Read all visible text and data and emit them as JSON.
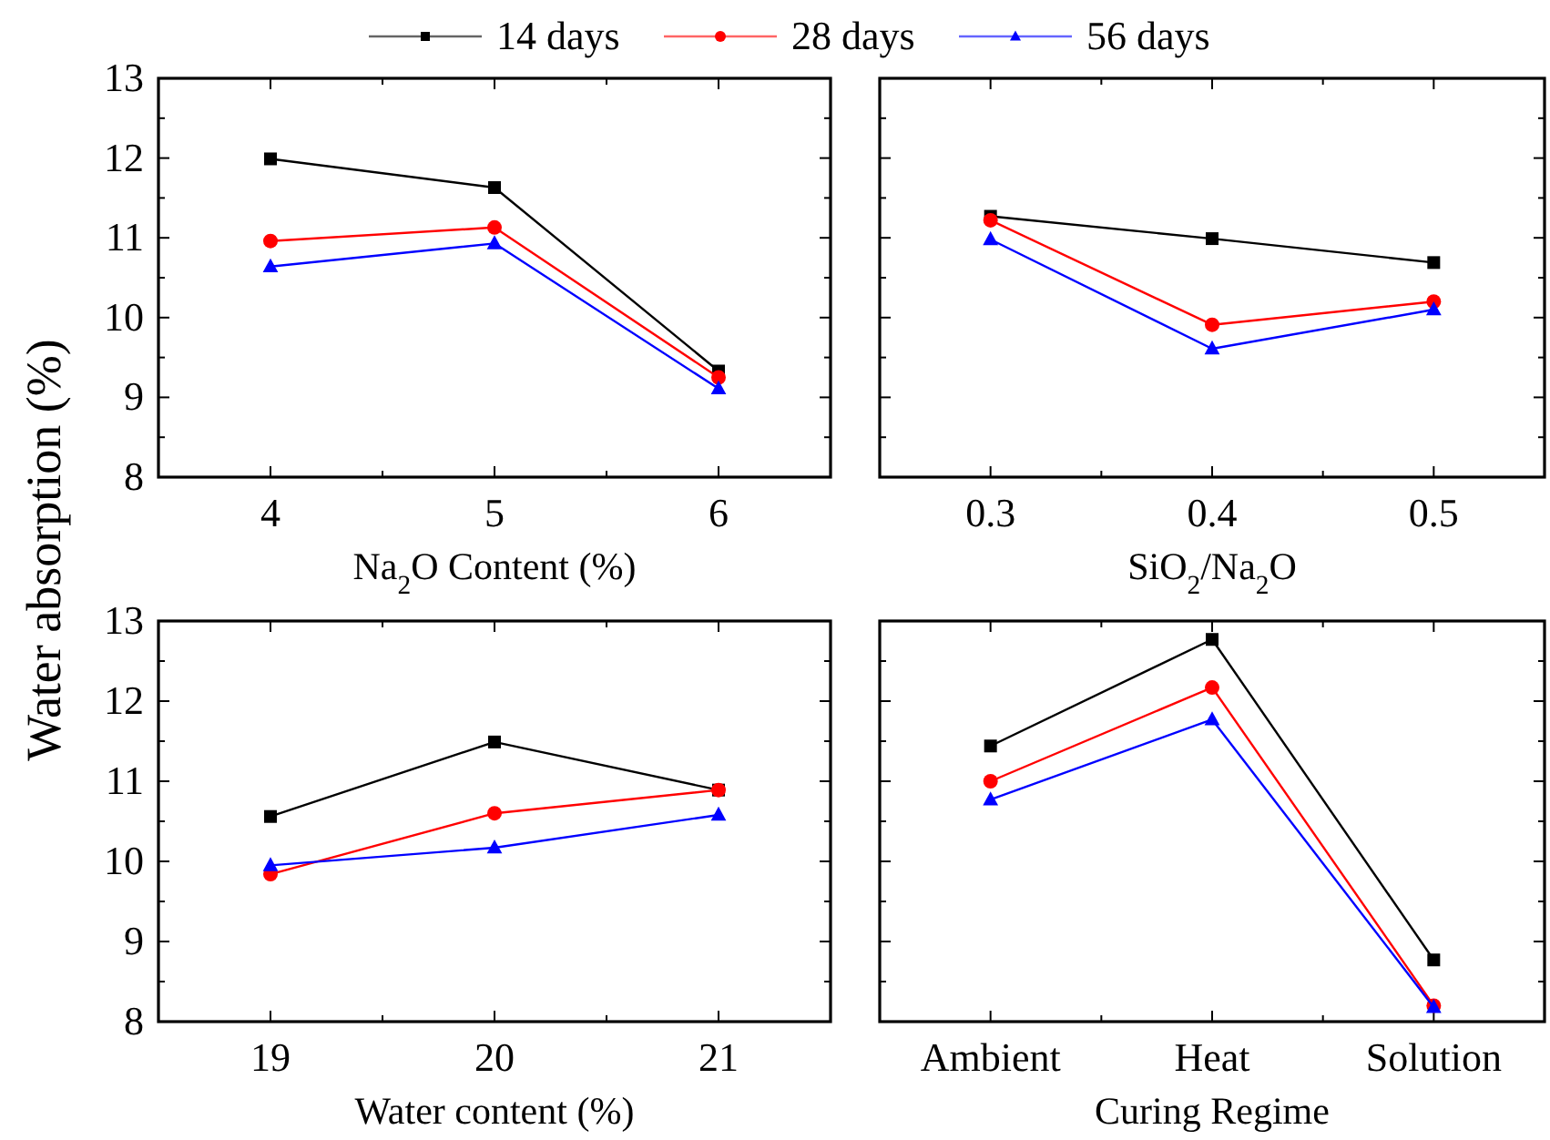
{
  "chart_data": [
    {
      "type": "line",
      "xlabel": "Na$_{2}$O Content (%)",
      "ylabel": "Water absorption (%)",
      "x": [
        4,
        5,
        6
      ],
      "xlim": [
        3.5,
        6.5
      ],
      "xticks": [
        4,
        {
          "value": 4.5,
          "label": null
        },
        5,
        {
          "value": 5.5,
          "label": null
        },
        6
      ],
      "ylim": [
        8,
        13
      ],
      "yticks": [
        8,
        {
          "value": 8.5,
          "label": null
        },
        9,
        {
          "value": 9.5,
          "label": null
        },
        10,
        {
          "value": 10.5,
          "label": null
        },
        11,
        {
          "value": 11.5,
          "label": null
        },
        12,
        {
          "value": 12.5,
          "label": null
        },
        13
      ],
      "legend": "top",
      "grid": false,
      "series": [
        {
          "name": "14 days",
          "color": "#000000",
          "marker": "square",
          "values": [
            11.99,
            11.63,
            9.33
          ]
        },
        {
          "name": "28 days",
          "color": "#ff0000",
          "marker": "circle",
          "values": [
            10.96,
            11.13,
            9.25
          ]
        },
        {
          "name": "56 days",
          "color": "#0000ff",
          "marker": "triangle",
          "values": [
            10.64,
            10.93,
            9.11
          ]
        }
      ]
    },
    {
      "type": "line",
      "xlabel": "SiO$_{2}$/Na$_{2}$O",
      "x": [
        0.3,
        0.4,
        0.5
      ],
      "xlim": [
        0.25,
        0.55
      ],
      "xticks": [
        0.3,
        {
          "value": 0.35,
          "label": null
        },
        0.4,
        {
          "value": 0.45,
          "label": null
        },
        0.5
      ],
      "ylim": [
        8,
        13
      ],
      "yticks": [
        8,
        {
          "value": 8.5,
          "label": null
        },
        9,
        {
          "value": 9.5,
          "label": null
        },
        10,
        {
          "value": 10.5,
          "label": null
        },
        11,
        {
          "value": 11.5,
          "label": null
        },
        12,
        {
          "value": 12.5,
          "label": null
        },
        13
      ],
      "tick_labels": "x",
      "grid": false,
      "series": [
        {
          "color": "#000000",
          "marker": "square",
          "values": [
            11.27,
            10.99,
            10.69
          ]
        },
        {
          "color": "#ff0000",
          "marker": "circle",
          "values": [
            11.22,
            9.91,
            10.2
          ]
        },
        {
          "color": "#0000ff",
          "marker": "triangle",
          "values": [
            10.98,
            9.61,
            10.1
          ]
        }
      ]
    },
    {
      "type": "line",
      "xlabel": "Water content (%)",
      "x": [
        19,
        20,
        21
      ],
      "xlim": [
        18.5,
        21.5
      ],
      "xticks": [
        19,
        {
          "value": 19.5,
          "label": null
        },
        20,
        {
          "value": 20.5,
          "label": null
        },
        21
      ],
      "ylim": [
        8,
        13
      ],
      "yticks": [
        8,
        {
          "value": 8.5,
          "label": null
        },
        9,
        {
          "value": 9.5,
          "label": null
        },
        10,
        {
          "value": 10.5,
          "label": null
        },
        11,
        {
          "value": 11.5,
          "label": null
        },
        12,
        {
          "value": 12.5,
          "label": null
        },
        13
      ],
      "grid": false,
      "series": [
        {
          "color": "#000000",
          "marker": "square",
          "values": [
            10.56,
            11.49,
            10.89
          ]
        },
        {
          "color": "#ff0000",
          "marker": "circle",
          "values": [
            9.84,
            10.6,
            10.89
          ]
        },
        {
          "color": "#0000ff",
          "marker": "triangle",
          "values": [
            9.95,
            10.17,
            10.58
          ]
        }
      ]
    },
    {
      "type": "line",
      "xlabel": "Curing Regime",
      "categories": [
        "Ambient",
        "Heat",
        "Solution"
      ],
      "ylim": [
        8,
        13
      ],
      "yticks": [
        8,
        {
          "value": 8.5,
          "label": null
        },
        9,
        {
          "value": 9.5,
          "label": null
        },
        10,
        {
          "value": 10.5,
          "label": null
        },
        11,
        {
          "value": 11.5,
          "label": null
        },
        12,
        {
          "value": 12.5,
          "label": null
        },
        13
      ],
      "tick_labels": "x",
      "grid": false,
      "series": [
        {
          "color": "#000000",
          "marker": "square",
          "values": [
            11.44,
            12.77,
            8.77
          ]
        },
        {
          "color": "#ff0000",
          "marker": "circle",
          "values": [
            11.0,
            12.17,
            8.2
          ]
        },
        {
          "color": "#0000ff",
          "marker": "triangle",
          "values": [
            10.77,
            11.77,
            8.18
          ]
        }
      ]
    }
  ]
}
